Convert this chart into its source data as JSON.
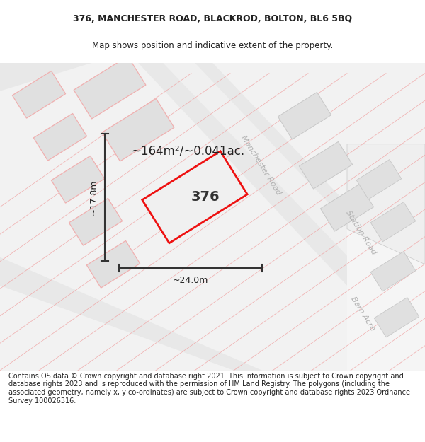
{
  "title_line1": "376, MANCHESTER ROAD, BLACKROD, BOLTON, BL6 5BQ",
  "title_line2": "Map shows position and indicative extent of the property.",
  "footer_text": "Contains OS data © Crown copyright and database right 2021. This information is subject to Crown copyright and database rights 2023 and is reproduced with the permission of HM Land Registry. The polygons (including the associated geometry, namely x, y co-ordinates) are subject to Crown copyright and database rights 2023 Ordnance Survey 100026316.",
  "area_label": "~164m²/~0.041ac.",
  "property_number": "376",
  "width_label": "~24.0m",
  "height_label": "~17.8m",
  "road_label1": "Manchester Road",
  "road_label2": "Station Road",
  "road_label3": "Barn Acre",
  "bg_color": "#ffffff",
  "map_bg": "#f2f2f2",
  "plot_border_color": "#ee1111",
  "bld_fill": "#e0e0e0",
  "bld_edge_pink": "#f0b0b0",
  "bld_edge_gray": "#c8c8c8",
  "road_band_fill": "#e6e6e6",
  "road_white_fill": "#f8f8f8",
  "pink_line_color": "#f0a0a0",
  "dim_line_color": "#333333",
  "text_dark": "#222222",
  "road_text_color": "#b0b0b0",
  "title_fontsize": 9,
  "subtitle_fontsize": 8.5,
  "footer_fontsize": 7,
  "area_fontsize": 12,
  "num_fontsize": 14,
  "dim_fontsize": 9,
  "road_fontsize": 8
}
